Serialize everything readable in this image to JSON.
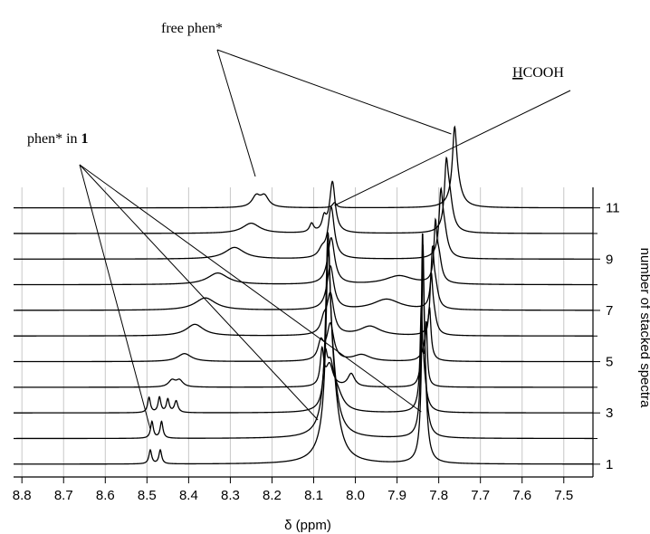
{
  "chart_data": {
    "type": "line",
    "title": "",
    "xlabel": "δ (ppm)",
    "ylabel": "number of stacked spectra",
    "x_reversed": true,
    "xlim": [
      8.82,
      7.43
    ],
    "x_ticks": [
      8.8,
      8.7,
      8.6,
      8.5,
      8.4,
      8.3,
      8.2,
      8.1,
      8.0,
      7.9,
      7.8,
      7.7,
      7.6,
      7.5
    ],
    "x_tick_labels": [
      "8.8",
      "8.7",
      "8.6",
      "8.5",
      "8.4",
      "8.3",
      "8.2",
      "8.1",
      "8.0",
      "7.9",
      "7.8",
      "7.7",
      "7.6",
      "7.5"
    ],
    "ylim": [
      0.5,
      11.8
    ],
    "y_ticks": [
      1,
      3,
      5,
      7,
      9,
      11
    ],
    "y_tick_labels": [
      "1",
      "3",
      "5",
      "7",
      "9",
      "11"
    ],
    "grid": "vertical",
    "annotations": {
      "free_phen": {
        "text": "free phen*",
        "points_to_ppm": [
          8.24,
          7.77
        ]
      },
      "formic": {
        "text_underlined": "H",
        "text_rest": "COOH",
        "points_to_ppm": [
          8.05
        ]
      },
      "phen_in_1": {
        "text": "phen* in ",
        "text_bold": "1",
        "points_to_ppm": [
          8.49,
          8.09,
          7.84
        ]
      }
    },
    "series": [
      {
        "spectrum": 1,
        "peaks": [
          {
            "x": 8.492,
            "h": 0.95,
            "w": 0.004
          },
          {
            "x": 8.468,
            "h": 0.95,
            "w": 0.004
          },
          {
            "x": 8.065,
            "h": 10.0,
            "w": 0.006
          },
          {
            "x": 8.058,
            "h": 6.0,
            "w": 0.018
          },
          {
            "x": 7.838,
            "h": 10.0,
            "w": 0.003
          },
          {
            "x": 7.835,
            "h": 6.0,
            "w": 0.007
          }
        ]
      },
      {
        "spectrum": 2,
        "peaks": [
          {
            "x": 8.488,
            "h": 1.15,
            "w": 0.004
          },
          {
            "x": 8.465,
            "h": 1.15,
            "w": 0.004
          },
          {
            "x": 8.066,
            "h": 10.0,
            "w": 0.006
          },
          {
            "x": 8.059,
            "h": 5.0,
            "w": 0.016
          },
          {
            "x": 7.839,
            "h": 10.0,
            "w": 0.003
          },
          {
            "x": 7.836,
            "h": 5.0,
            "w": 0.007
          }
        ]
      },
      {
        "spectrum": 3,
        "peaks": [
          {
            "x": 8.495,
            "h": 1.05,
            "w": 0.004
          },
          {
            "x": 8.47,
            "h": 1.05,
            "w": 0.004
          },
          {
            "x": 8.45,
            "h": 0.9,
            "w": 0.004
          },
          {
            "x": 8.43,
            "h": 0.8,
            "w": 0.005
          },
          {
            "x": 8.072,
            "h": 3.0,
            "w": 0.006
          },
          {
            "x": 8.06,
            "h": 2.5,
            "w": 0.01
          },
          {
            "x": 8.045,
            "h": 1.2,
            "w": 0.018
          },
          {
            "x": 7.842,
            "h": 5.0,
            "w": 0.003
          },
          {
            "x": 7.838,
            "h": 3.0,
            "w": 0.008
          }
        ]
      },
      {
        "spectrum": 4,
        "peaks": [
          {
            "x": 8.44,
            "h": 0.45,
            "w": 0.01
          },
          {
            "x": 8.422,
            "h": 0.45,
            "w": 0.01
          },
          {
            "x": 8.08,
            "h": 2.4,
            "w": 0.005
          },
          {
            "x": 8.062,
            "h": 1.5,
            "w": 0.01
          },
          {
            "x": 8.01,
            "h": 0.9,
            "w": 0.01
          },
          {
            "x": 7.84,
            "h": 2.2,
            "w": 0.006
          },
          {
            "x": 7.83,
            "h": 4.0,
            "w": 0.003
          }
        ]
      },
      {
        "spectrum": 5,
        "peaks": [
          {
            "x": 8.41,
            "h": 0.55,
            "w": 0.02
          },
          {
            "x": 7.985,
            "h": 0.45,
            "w": 0.025
          },
          {
            "x": 8.083,
            "h": 1.2,
            "w": 0.008
          },
          {
            "x": 8.06,
            "h": 2.5,
            "w": 0.01
          },
          {
            "x": 7.83,
            "h": 1.5,
            "w": 0.008
          },
          {
            "x": 7.822,
            "h": 3.0,
            "w": 0.004
          }
        ]
      },
      {
        "spectrum": 6,
        "peaks": [
          {
            "x": 8.385,
            "h": 0.8,
            "w": 0.025
          },
          {
            "x": 7.965,
            "h": 0.65,
            "w": 0.03
          },
          {
            "x": 8.06,
            "h": 2.8,
            "w": 0.01
          },
          {
            "x": 8.076,
            "h": 0.8,
            "w": 0.008
          },
          {
            "x": 7.818,
            "h": 3.5,
            "w": 0.004
          },
          {
            "x": 7.812,
            "h": 1.3,
            "w": 0.008
          }
        ]
      },
      {
        "spectrum": 7,
        "peaks": [
          {
            "x": 8.36,
            "h": 0.85,
            "w": 0.03
          },
          {
            "x": 7.925,
            "h": 0.75,
            "w": 0.04
          },
          {
            "x": 8.06,
            "h": 3.0,
            "w": 0.01
          },
          {
            "x": 7.815,
            "h": 3.5,
            "w": 0.004
          },
          {
            "x": 7.808,
            "h": 1.5,
            "w": 0.008
          }
        ]
      },
      {
        "spectrum": 8,
        "peaks": [
          {
            "x": 8.33,
            "h": 0.8,
            "w": 0.03
          },
          {
            "x": 7.895,
            "h": 0.6,
            "w": 0.04
          },
          {
            "x": 8.058,
            "h": 3.2,
            "w": 0.01
          },
          {
            "x": 7.808,
            "h": 3.5,
            "w": 0.004
          },
          {
            "x": 7.8,
            "h": 1.8,
            "w": 0.008
          }
        ]
      },
      {
        "spectrum": 9,
        "peaks": [
          {
            "x": 8.29,
            "h": 0.8,
            "w": 0.028
          },
          {
            "x": 8.08,
            "h": 0.5,
            "w": 0.01
          },
          {
            "x": 8.058,
            "h": 3.5,
            "w": 0.009
          },
          {
            "x": 7.795,
            "h": 3.5,
            "w": 0.005
          },
          {
            "x": 7.788,
            "h": 2.0,
            "w": 0.01
          }
        ]
      },
      {
        "spectrum": 10,
        "peaks": [
          {
            "x": 8.25,
            "h": 0.7,
            "w": 0.025
          },
          {
            "x": 8.105,
            "h": 0.6,
            "w": 0.006
          },
          {
            "x": 8.075,
            "h": 0.9,
            "w": 0.006
          },
          {
            "x": 8.055,
            "h": 3.5,
            "w": 0.008
          },
          {
            "x": 7.782,
            "h": 3.5,
            "w": 0.005
          },
          {
            "x": 7.775,
            "h": 2.5,
            "w": 0.01
          }
        ]
      },
      {
        "spectrum": 11,
        "peaks": [
          {
            "x": 8.238,
            "h": 0.75,
            "w": 0.012
          },
          {
            "x": 8.218,
            "h": 0.75,
            "w": 0.012
          },
          {
            "x": 8.05,
            "h": 0.35,
            "w": 0.006
          },
          {
            "x": 7.762,
            "h": 4.2,
            "w": 0.006
          },
          {
            "x": 7.758,
            "h": 1.5,
            "w": 0.014
          }
        ]
      }
    ]
  }
}
